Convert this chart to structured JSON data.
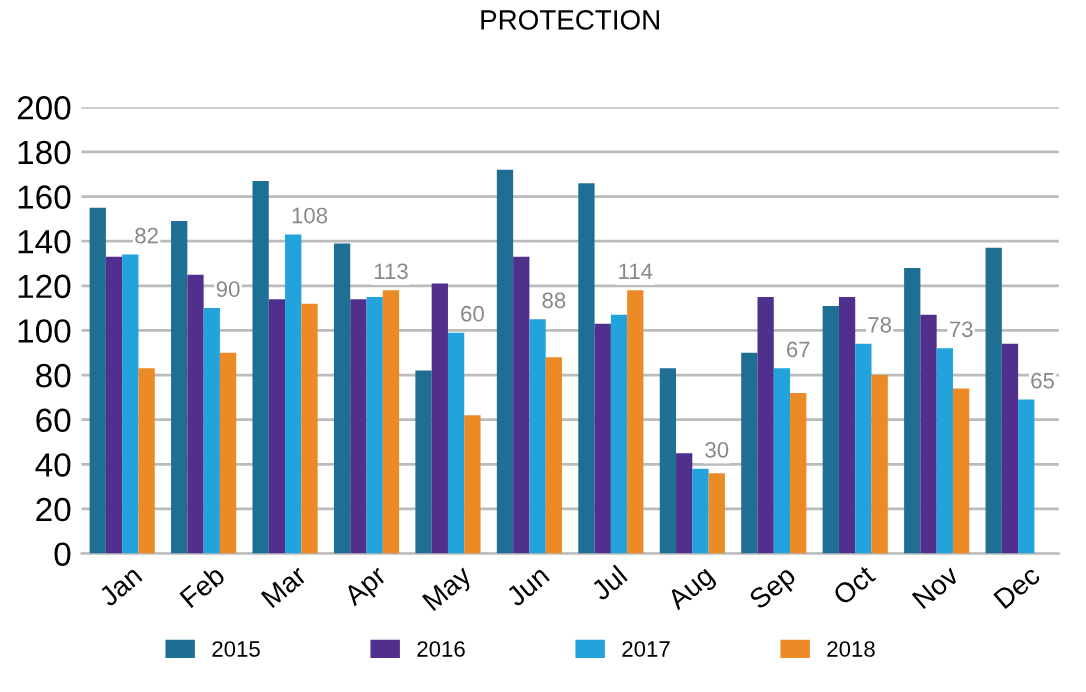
{
  "chart_data": {
    "type": "bar",
    "title": "PROTECTION",
    "categories": [
      "Jan",
      "Feb",
      "Mar",
      "Apr",
      "May",
      "Jun",
      "Jul",
      "Aug",
      "Sep",
      "Oct",
      "Nov",
      "Dec"
    ],
    "series": [
      {
        "name": "2015",
        "color": "#1f6e93",
        "values": [
          155,
          149,
          167,
          139,
          82,
          172,
          166,
          83,
          90,
          111,
          128,
          137
        ]
      },
      {
        "name": "2016",
        "color": "#50308c",
        "values": [
          133,
          125,
          114,
          114,
          121,
          133,
          103,
          45,
          115,
          115,
          107,
          94
        ]
      },
      {
        "name": "2017",
        "color": "#22a3dc",
        "values": [
          134,
          110,
          143,
          115,
          99,
          105,
          107,
          38,
          83,
          94,
          92,
          69
        ]
      },
      {
        "name": "2018",
        "color": "#ec8a26",
        "values": [
          83,
          90,
          112,
          118,
          62,
          88,
          118,
          36,
          72,
          80,
          74,
          null
        ]
      }
    ],
    "annotations": [
      "82",
      "90",
      "108",
      "113",
      "60",
      "88",
      "114",
      "30",
      "67",
      "78",
      "73",
      "65"
    ],
    "ylim": [
      0,
      200
    ],
    "yticks": [
      0,
      20,
      40,
      60,
      80,
      100,
      120,
      140,
      160,
      180,
      200
    ],
    "grid": "y",
    "legend": "bottom"
  }
}
